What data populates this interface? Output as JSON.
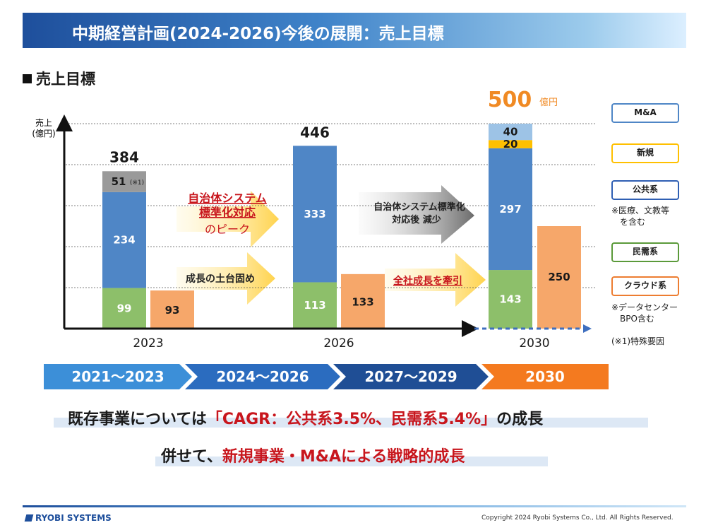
{
  "header": {
    "title": "中期経営計画(2024-2026)今後の展開：売上目標"
  },
  "section": {
    "title": "売上目標"
  },
  "chart_data": {
    "type": "bar",
    "ylabel": "売上\n(億円)",
    "ylim": [
      0,
      520
    ],
    "categories": [
      "2023",
      "2026",
      "2030"
    ],
    "stacked_series": [
      {
        "name": "民需系",
        "color": "#8dbf6a",
        "values": [
          99,
          113,
          143
        ]
      },
      {
        "name": "公共系",
        "color": "#4f86c6",
        "values": [
          234,
          333,
          297
        ]
      },
      {
        "name": "特殊要因",
        "color": "#9a9a9a",
        "values": [
          51,
          0,
          0
        ]
      },
      {
        "name": "新規",
        "color": "#ffc000",
        "values": [
          0,
          0,
          20
        ]
      },
      {
        "name": "M&A",
        "color": "#9dc3e6",
        "values": [
          0,
          0,
          40
        ]
      }
    ],
    "side_series": {
      "name": "クラウド系",
      "color": "#f6a76a",
      "values": [
        93,
        133,
        250
      ]
    },
    "totals": [
      "384",
      "446",
      "500"
    ],
    "total_unit_2030": "億円",
    "special_note": "(※1)",
    "grid": true
  },
  "annotations": {
    "peak_line1": "自治体システム",
    "peak_line2": "標準化対応",
    "peak_line3": "のピーク",
    "foundation": "成長の土台固め",
    "after_line1": "自治体システム標準化",
    "after_line2": "対応後 減少",
    "drive": "全社成長を牽引"
  },
  "legend": {
    "ma": "M&A",
    "new": "新規",
    "public": "公共系",
    "public_note1": "※医療、文教等",
    "public_note2": "を含む",
    "private": "民需系",
    "cloud": "クラウド系",
    "cloud_note1": "※データセンター",
    "cloud_note2": "BPO含む",
    "footnote": "(※1)特殊要因",
    "colors": {
      "ma": "#4f86c6",
      "new": "#ffc000",
      "public": "#2f5fb3",
      "private": "#5b9a3a",
      "cloud": "#ed7d31"
    }
  },
  "timeline": [
    {
      "label": "2021～2023",
      "color": "#3c8fd8"
    },
    {
      "label": "2024～2026",
      "color": "#2b6cbf"
    },
    {
      "label": "2027～2029",
      "color": "#1f4e95"
    },
    {
      "label": "2030",
      "color": "#f47a1f"
    }
  ],
  "messages": {
    "line1_pre": "既存事業については",
    "line1_red": "「CAGR：公共系3.5%、民需系5.4%」",
    "line1_post": "の成長",
    "line2_pre": "併せて、",
    "line2_red": "新規事業・M&Aによる戦略的成長"
  },
  "footer": {
    "logo": "RYOBI SYSTEMS",
    "copyright": "Copyright 2024 Ryobi Systems Co., Ltd. All Rights Reserved."
  }
}
